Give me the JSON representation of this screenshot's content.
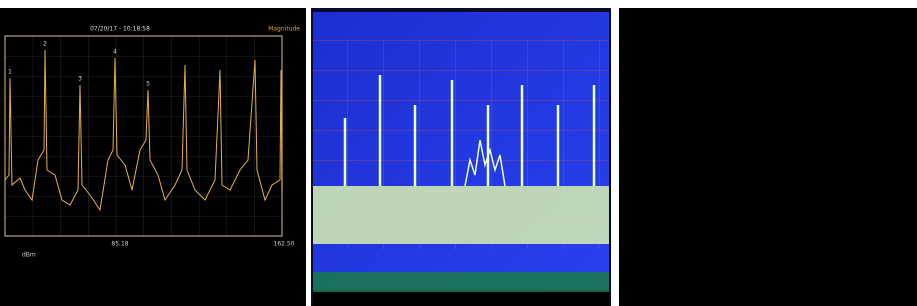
{
  "thumbnails": [
    {
      "title": "07/20/17 - 10:18:58",
      "axis_label": "Magnitude",
      "x_labels": [
        "85.18",
        "162.50"
      ],
      "markers": [
        "1",
        "2",
        "3",
        "4",
        "5"
      ],
      "unit": "dBm"
    },
    {},
    {}
  ]
}
